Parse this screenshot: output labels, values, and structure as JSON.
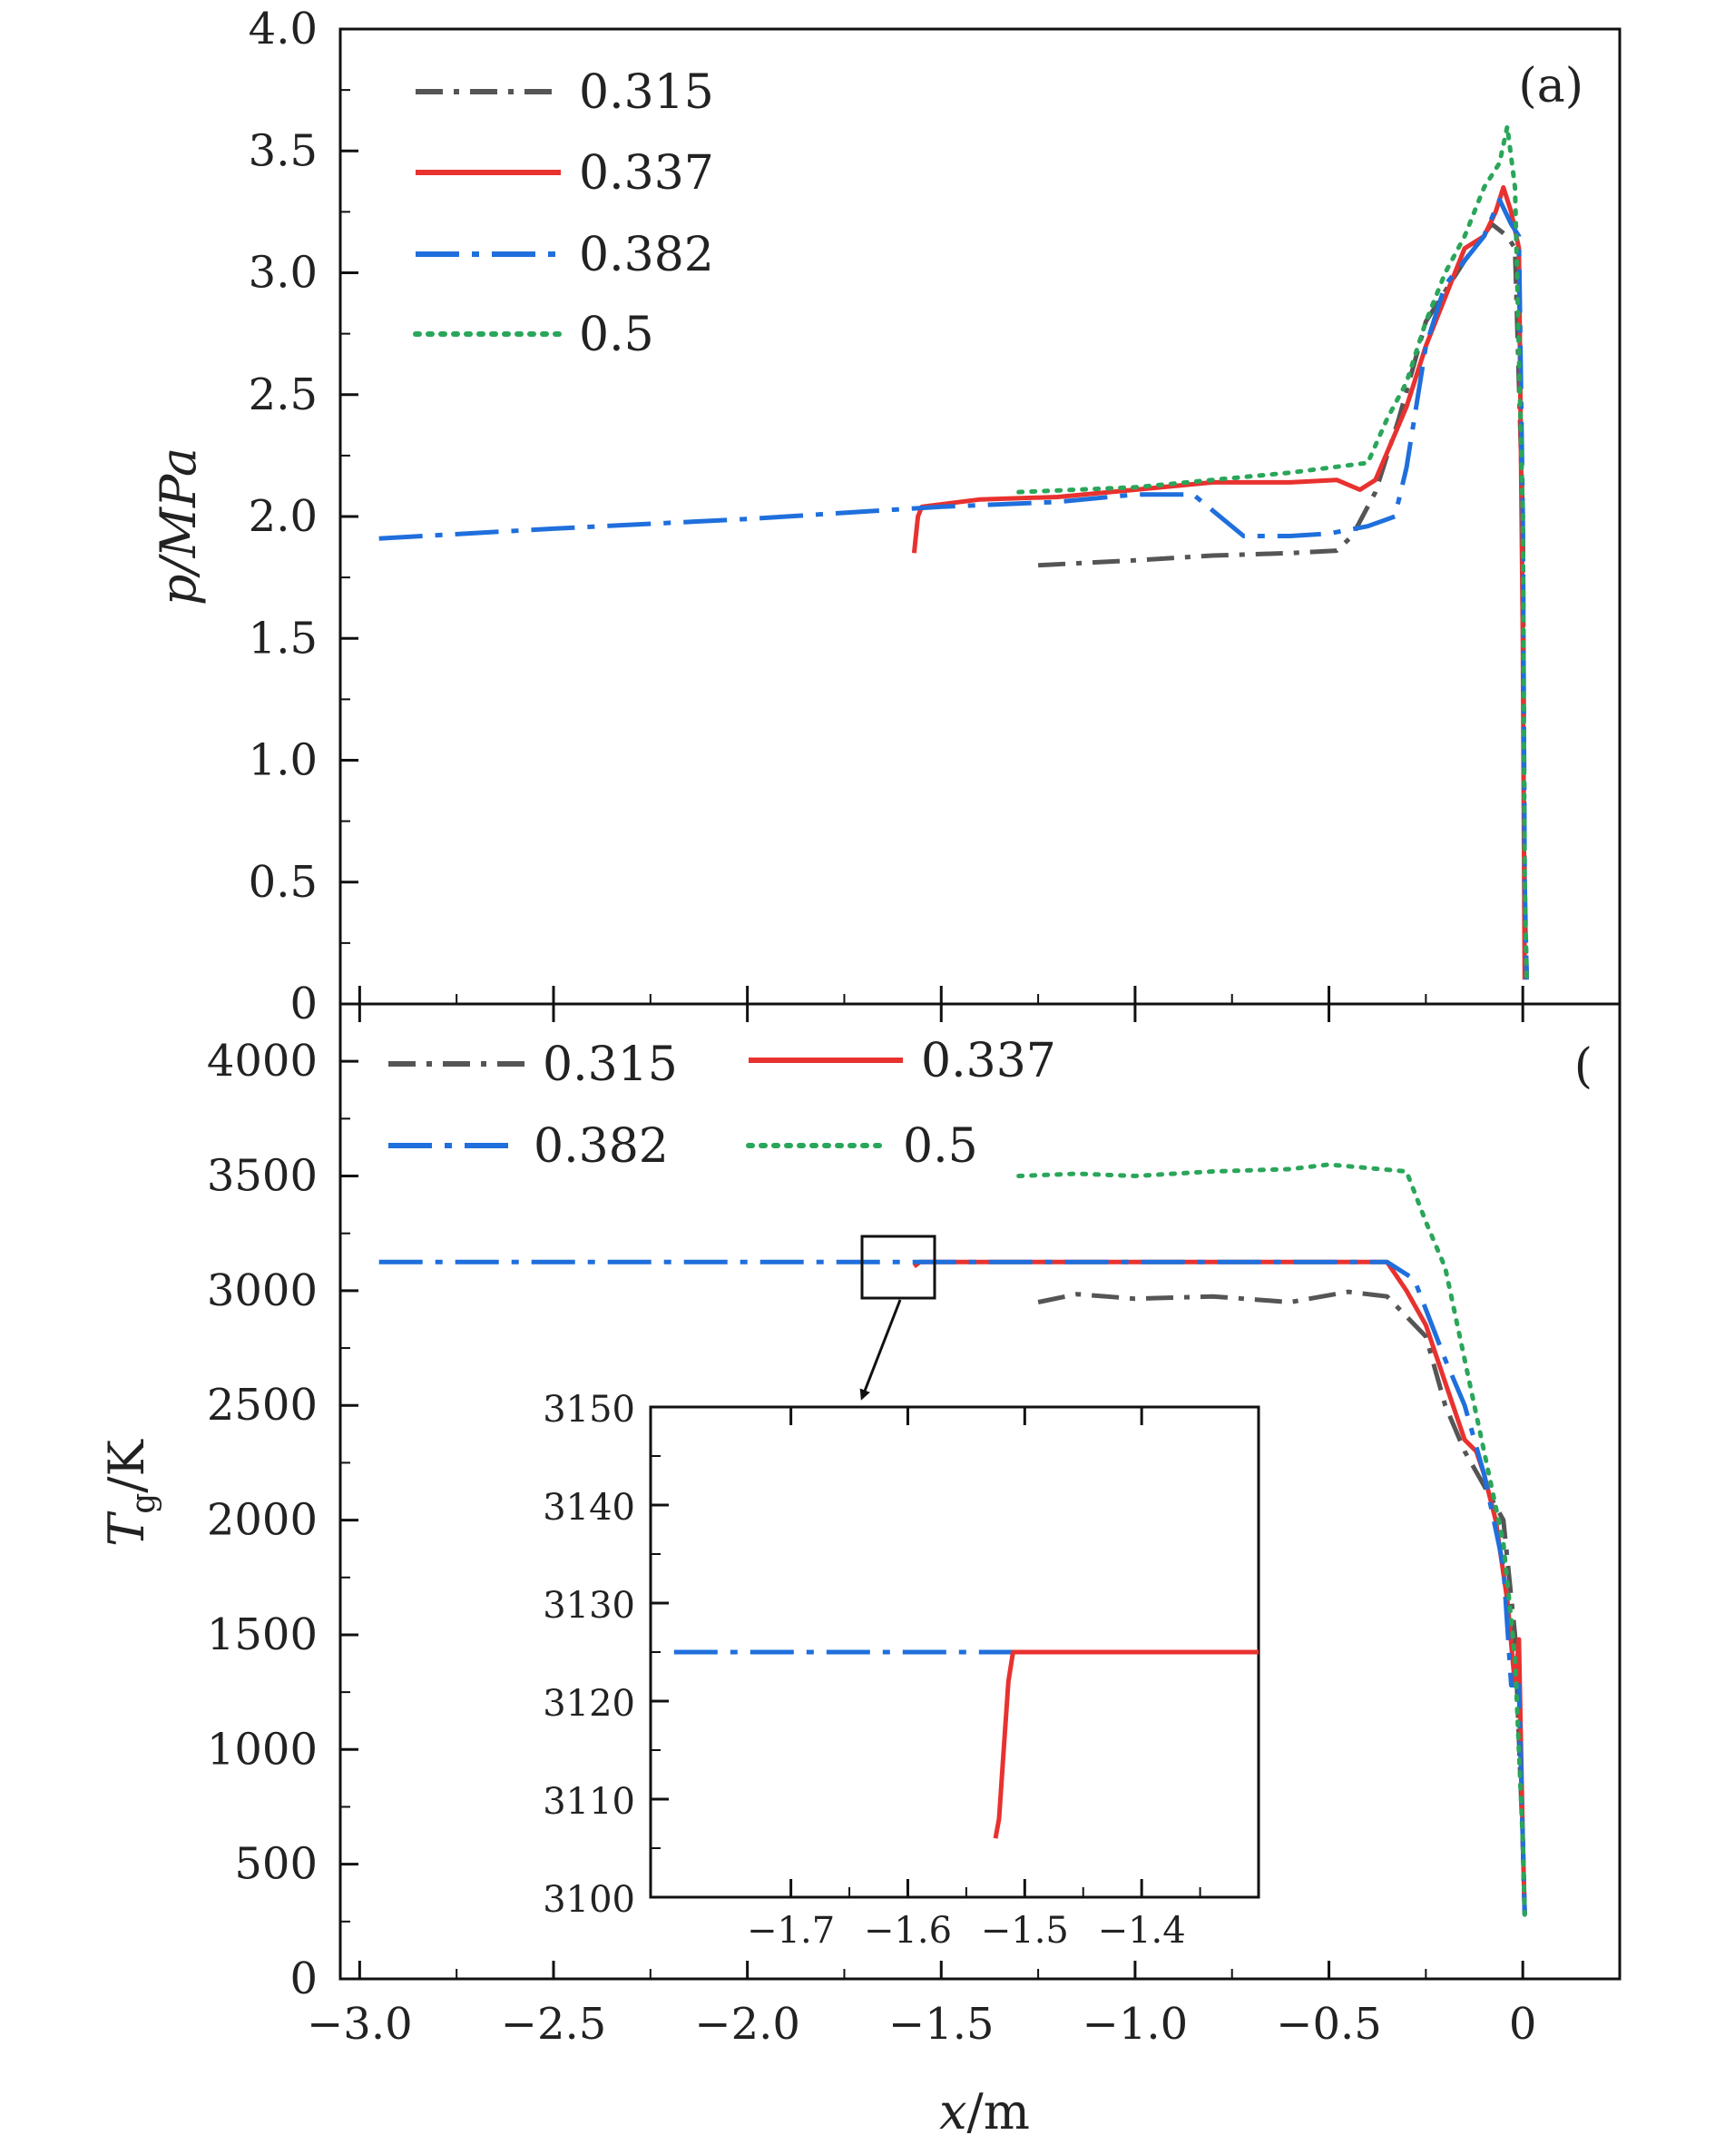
{
  "figure": {
    "xlabel": "x/m",
    "x_ticks": [
      "−3.0",
      "−2.5",
      "−2.0",
      "−1.5",
      "−1.0",
      "−0.5",
      "0"
    ]
  },
  "chart_data": [
    {
      "type": "line",
      "panel": "(a)",
      "ylabel": "p/MPa",
      "xlim": [
        -3.05,
        0.25
      ],
      "ylim": [
        0,
        4.0
      ],
      "y_ticks": [
        "0",
        "0.5",
        "1.0",
        "1.5",
        "2.0",
        "2.5",
        "3.0",
        "3.5",
        "4.0"
      ],
      "legend_placement": "top-left",
      "series": [
        {
          "name": "0.315",
          "color": "#555555",
          "dash": "dashdot",
          "x": [
            -1.25,
            -1.0,
            -0.8,
            -0.6,
            -0.48,
            -0.44,
            -0.38,
            -0.32,
            -0.25,
            -0.15,
            -0.08,
            -0.04,
            -0.02,
            0.0,
            0.005,
            0.01
          ],
          "y": [
            1.8,
            1.82,
            1.84,
            1.85,
            1.86,
            1.92,
            2.1,
            2.4,
            2.8,
            3.05,
            3.2,
            3.15,
            3.1,
            2.0,
            0.4,
            0.12
          ]
        },
        {
          "name": "0.337",
          "color": "#e8322f",
          "dash": "solid",
          "x": [
            -1.57,
            -1.56,
            -1.55,
            -1.4,
            -1.2,
            -1.0,
            -0.8,
            -0.6,
            -0.48,
            -0.42,
            -0.38,
            -0.3,
            -0.25,
            -0.2,
            -0.15,
            -0.1,
            -0.07,
            -0.05,
            -0.03,
            -0.01,
            0.0,
            0.005
          ],
          "y": [
            1.85,
            2.0,
            2.04,
            2.07,
            2.08,
            2.11,
            2.14,
            2.14,
            2.15,
            2.11,
            2.15,
            2.45,
            2.7,
            2.9,
            3.1,
            3.15,
            3.25,
            3.35,
            3.25,
            3.1,
            1.5,
            0.1
          ]
        },
        {
          "name": "0.382",
          "color": "#1f6fdc",
          "dash": "longdashdot",
          "x": [
            -2.95,
            -2.5,
            -2.0,
            -1.6,
            -1.5,
            -1.2,
            -1.0,
            -0.85,
            -0.72,
            -0.6,
            -0.5,
            -0.4,
            -0.33,
            -0.3,
            -0.25,
            -0.2,
            -0.15,
            -0.1,
            -0.06,
            -0.03,
            -0.01,
            0.0,
            0.005,
            0.01
          ],
          "y": [
            1.91,
            1.95,
            1.99,
            2.03,
            2.04,
            2.06,
            2.09,
            2.09,
            1.92,
            1.92,
            1.93,
            1.96,
            2.0,
            2.2,
            2.7,
            2.95,
            3.05,
            3.15,
            3.3,
            3.2,
            3.15,
            2.0,
            0.5,
            0.1
          ]
        },
        {
          "name": "0.5",
          "color": "#2aa65a",
          "dash": "dotted",
          "x": [
            -1.3,
            -1.0,
            -0.8,
            -0.6,
            -0.4,
            -0.35,
            -0.3,
            -0.25,
            -0.2,
            -0.15,
            -0.1,
            -0.06,
            -0.04,
            -0.02,
            0.0,
            0.005,
            0.01
          ],
          "y": [
            2.1,
            2.12,
            2.15,
            2.18,
            2.22,
            2.4,
            2.55,
            2.8,
            3.0,
            3.15,
            3.35,
            3.45,
            3.6,
            3.35,
            2.0,
            0.5,
            0.1
          ]
        }
      ]
    },
    {
      "type": "line",
      "panel": "(b)",
      "ylabel": "T_g/K",
      "xlim": [
        -3.05,
        0.25
      ],
      "ylim": [
        0,
        4250
      ],
      "y_ticks": [
        "0",
        "500",
        "1000",
        "1500",
        "2000",
        "2500",
        "3000",
        "3500",
        "4000"
      ],
      "legend_placement": "top, two columns",
      "series": [
        {
          "name": "0.315",
          "color": "#555555",
          "dash": "dashdot",
          "x": [
            -1.25,
            -1.15,
            -1.0,
            -0.8,
            -0.6,
            -0.45,
            -0.35,
            -0.25,
            -0.2,
            -0.15,
            -0.1,
            -0.05,
            -0.02,
            0.0,
            0.005
          ],
          "y": [
            2950,
            2985,
            2965,
            2975,
            2950,
            2995,
            2975,
            2800,
            2500,
            2300,
            2150,
            2000,
            1500,
            600,
            280
          ]
        },
        {
          "name": "0.337",
          "color": "#e8322f",
          "dash": "solid",
          "x": [
            -1.57,
            -1.555,
            -1.5,
            -1.2,
            -1.0,
            -0.8,
            -0.6,
            -0.4,
            -0.35,
            -0.3,
            -0.25,
            -0.2,
            -0.15,
            -0.12,
            -0.1,
            -0.07,
            -0.04,
            -0.02,
            -0.01,
            0.0,
            0.005
          ],
          "y": [
            3106,
            3125,
            3125,
            3125,
            3125,
            3125,
            3125,
            3125,
            3125,
            3000,
            2850,
            2600,
            2350,
            2300,
            2200,
            2000,
            1650,
            1280,
            1480,
            600,
            280
          ]
        },
        {
          "name": "0.382",
          "color": "#1f6fdc",
          "dash": "longdashdot",
          "x": [
            -2.95,
            -2.5,
            -2.0,
            -1.6,
            -1.5,
            -1.2,
            -1.0,
            -0.8,
            -0.6,
            -0.4,
            -0.35,
            -0.28,
            -0.2,
            -0.15,
            -0.1,
            -0.05,
            -0.03,
            -0.01,
            0.0,
            0.005
          ],
          "y": [
            3125,
            3125,
            3125,
            3125,
            3125,
            3125,
            3125,
            3125,
            3125,
            3125,
            3125,
            3050,
            2700,
            2500,
            2200,
            1800,
            1280,
            1280,
            600,
            280
          ]
        },
        {
          "name": "0.5",
          "color": "#2aa65a",
          "dash": "dotted",
          "x": [
            -1.3,
            -1.15,
            -1.0,
            -0.8,
            -0.6,
            -0.5,
            -0.4,
            -0.3,
            -0.25,
            -0.2,
            -0.15,
            -0.1,
            -0.05,
            -0.02,
            0.0,
            0.005
          ],
          "y": [
            3500,
            3510,
            3500,
            3520,
            3530,
            3550,
            3535,
            3520,
            3300,
            3100,
            2700,
            2300,
            1900,
            1400,
            600,
            280
          ]
        }
      ]
    },
    {
      "type": "line",
      "panel": "(b) inset",
      "xlim": [
        -1.82,
        -1.3
      ],
      "ylim": [
        3100,
        3150
      ],
      "x_ticks": [
        "−1.7",
        "−1.6",
        "−1.5",
        "−1.4"
      ],
      "y_ticks": [
        "3100",
        "3110",
        "3120",
        "3130",
        "3140",
        "3150"
      ],
      "series": [
        {
          "name": "0.382",
          "color": "#1f6fdc",
          "dash": "longdashdot",
          "x": [
            -1.8,
            -1.3
          ],
          "y": [
            3125,
            3125
          ]
        },
        {
          "name": "0.337",
          "color": "#e8322f",
          "dash": "solid",
          "x": [
            -1.525,
            -1.522,
            -1.518,
            -1.514,
            -1.51,
            -1.3
          ],
          "y": [
            3106,
            3108,
            3115,
            3122,
            3125,
            3125
          ]
        }
      ]
    }
  ]
}
